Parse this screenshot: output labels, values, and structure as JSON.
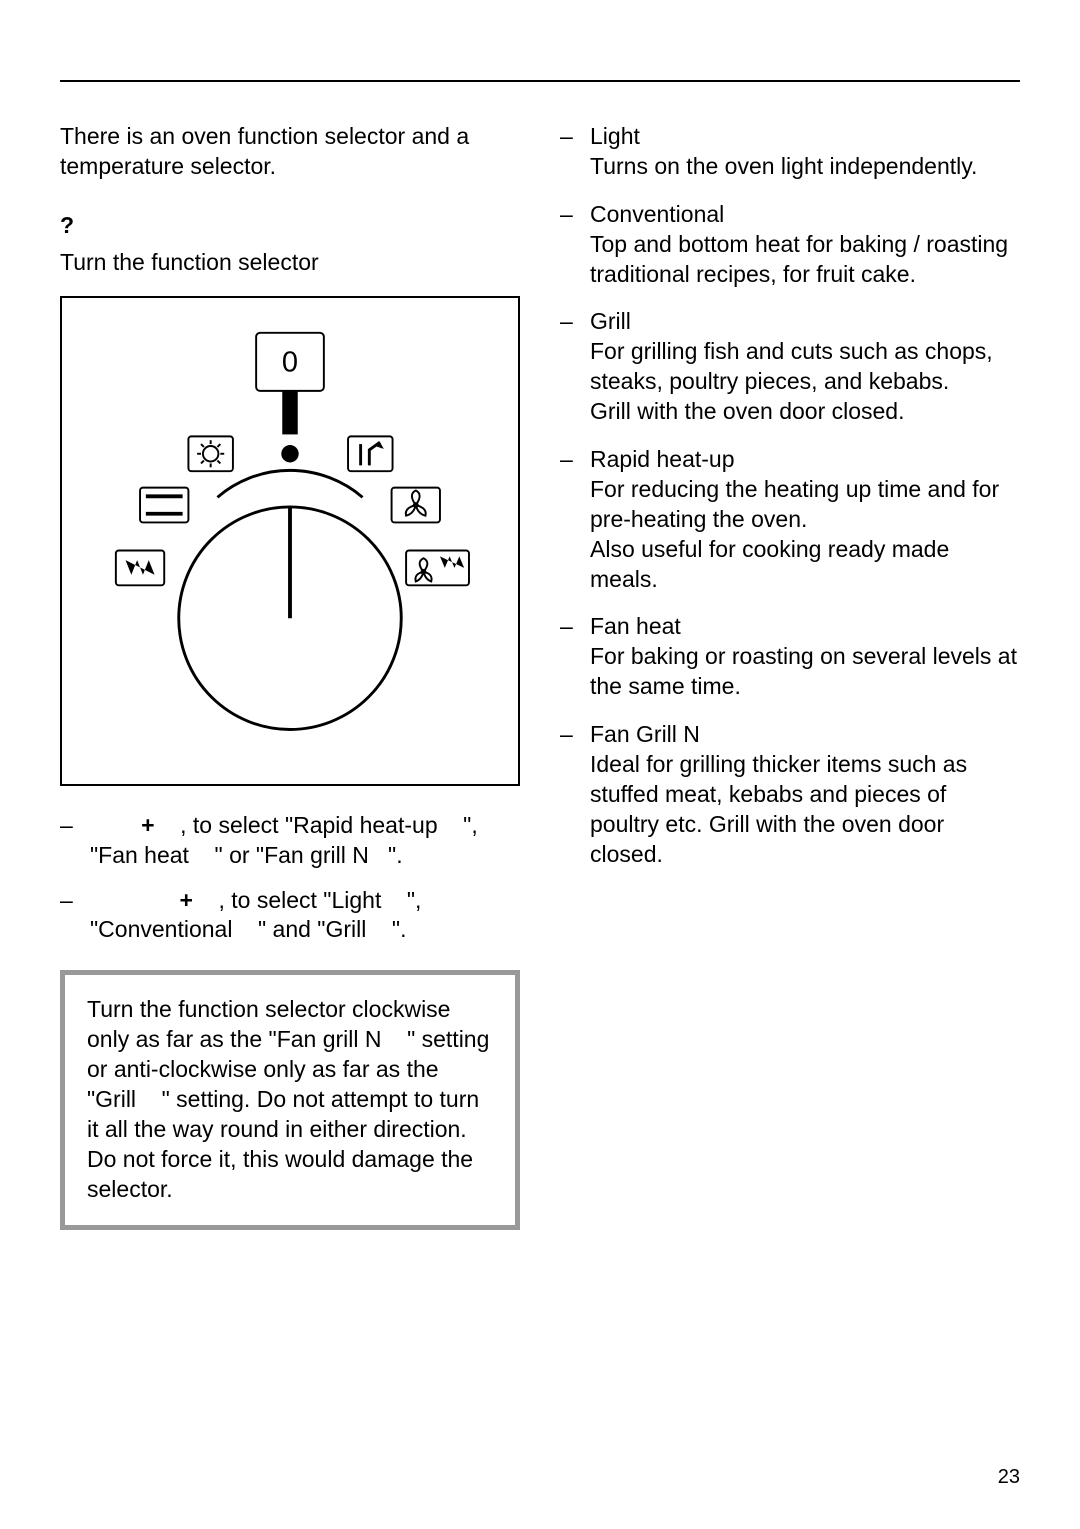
{
  "page": {
    "number": "23"
  },
  "left": {
    "intro": "There is an oven function selector and a temperature selector.",
    "question_mark": "?",
    "instruction": "Turn the function selector",
    "diagram": {
      "zero_label": "0",
      "border_color": "#000000",
      "line_width": 2
    },
    "bullets": [
      {
        "pre": "",
        "plus": "+",
        "text": "    , to select \"Rapid heat-up    \", \"Fan heat    \" or \"Fan grill N   \"."
      },
      {
        "pre": "",
        "plus": "+",
        "text": "    , to select \"Light    \", \"Conventional    \" and \"Grill    \"."
      }
    ],
    "info_box": "Turn the function selector clockwise only as far as the \"Fan grill N    \" setting or anti-clockwise only as far as the \"Grill    \" setting. Do not attempt to turn it all the way round in either direction. Do not force it, this would damage the selector."
  },
  "right": {
    "functions": [
      {
        "title": "Light",
        "desc": "Turns on the oven light independently."
      },
      {
        "title": "Conventional",
        "desc": "Top and bottom heat for baking / roasting traditional recipes, for fruit cake."
      },
      {
        "title": "Grill",
        "desc": "For grilling fish and cuts such as chops, steaks, poultry pieces, and kebabs.\nGrill with the oven door closed."
      },
      {
        "title": "Rapid heat-up",
        "desc": "For reducing the heating up time and for pre-heating the oven.\nAlso useful for cooking ready made meals."
      },
      {
        "title": "Fan heat",
        "desc": "For baking or roasting on several levels at the same time."
      },
      {
        "title": "Fan Grill N",
        "desc": "Ideal for grilling thicker items such as stuffed meat, kebabs and pieces of poultry etc. Grill with the oven door closed."
      }
    ]
  }
}
